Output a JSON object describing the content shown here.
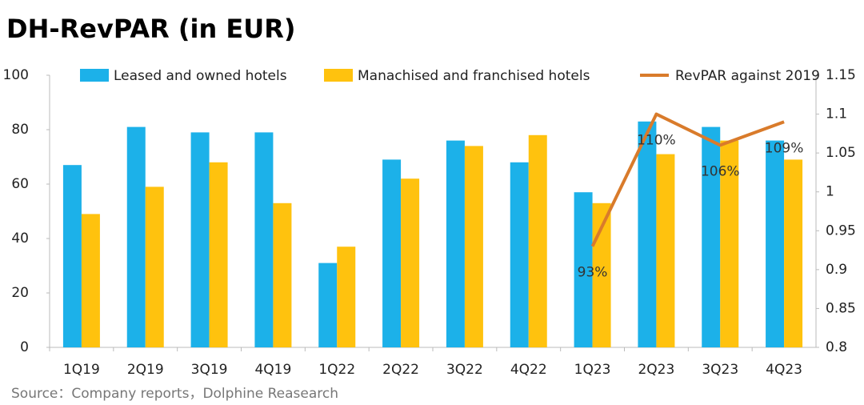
{
  "chart_data": {
    "type": "bar_line",
    "title": "DH-RevPAR (in EUR)",
    "source": "Source：Company reports，Dolphine Reasearch",
    "categories": [
      "1Q19",
      "2Q19",
      "3Q19",
      "4Q19",
      "1Q22",
      "2Q22",
      "3Q22",
      "4Q22",
      "1Q23",
      "2Q23",
      "3Q23",
      "4Q23"
    ],
    "series": [
      {
        "name": "Leased and owned hotels",
        "color": "#1cb1e9",
        "type": "bar",
        "values": [
          67,
          81,
          79,
          79,
          31,
          69,
          76,
          68,
          57,
          83,
          81,
          76
        ]
      },
      {
        "name": "Manachised and franchised hotels",
        "color": "#ffc20e",
        "type": "bar",
        "values": [
          49,
          59,
          68,
          53,
          37,
          62,
          74,
          78,
          53,
          71,
          76,
          69
        ]
      },
      {
        "name": "RevPAR against 2019",
        "color": "#d97b2b",
        "type": "line",
        "axis": "y2",
        "values": [
          null,
          null,
          null,
          null,
          null,
          null,
          null,
          null,
          0.93,
          1.1,
          1.06,
          1.09
        ],
        "value_labels": [
          null,
          null,
          null,
          null,
          null,
          null,
          null,
          null,
          "93%",
          "110%",
          "106%",
          "109%"
        ]
      }
    ],
    "ylim": [
      0,
      100
    ],
    "yticks": [
      0,
      20,
      40,
      60,
      80,
      100
    ],
    "y2lim": [
      0.8,
      1.15
    ],
    "y2ticks": [
      0.8,
      0.85,
      0.9,
      0.95,
      1,
      1.05,
      1.1,
      1.15
    ],
    "grid": false,
    "legend": "top"
  }
}
